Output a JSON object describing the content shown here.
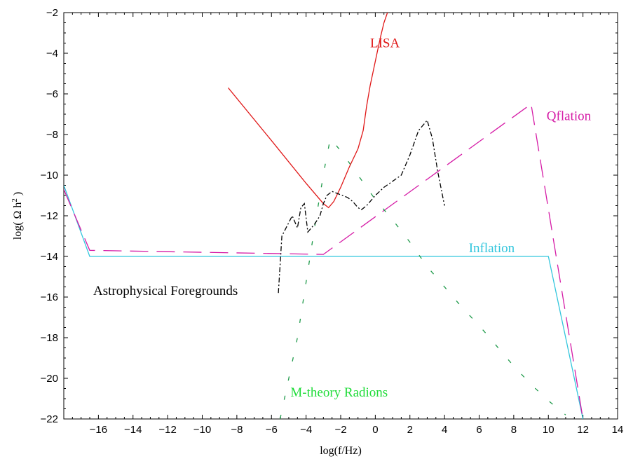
{
  "chart_data": {
    "type": "line",
    "xlabel": "log(f/Hz)",
    "ylabel": "log( Ω h",
    "ylabel_sup": "2",
    "ylabel_close": ")",
    "xlim": [
      -18,
      14
    ],
    "ylim": [
      -22,
      -2
    ],
    "xticks": [
      -16,
      -14,
      -12,
      -10,
      -8,
      -6,
      -4,
      -2,
      0,
      2,
      4,
      6,
      8,
      10,
      12,
      14
    ],
    "xtick_labels": [
      "−16",
      "−14",
      "−12",
      "−10",
      "−8",
      "−6",
      "−4",
      "−2",
      "0",
      "2",
      "4",
      "6",
      "8",
      "10",
      "12",
      "14"
    ],
    "yticks": [
      -22,
      -20,
      -18,
      -16,
      -14,
      -12,
      -10,
      -8,
      -6,
      -4,
      -2
    ],
    "ytick_labels": [
      "−22",
      "−20",
      "−18",
      "−16",
      "−14",
      "−12",
      "−10",
      "−8",
      "−6",
      "−4",
      "−2"
    ],
    "grid": false,
    "series": [
      {
        "name": "Inflation",
        "color": "#33c6dd",
        "dash": "solid",
        "x": [
          -18,
          -16.5,
          10,
          12
        ],
        "y": [
          -10.5,
          -14,
          -14,
          -22
        ]
      },
      {
        "name": "Qflation",
        "color": "#d51ba6",
        "dash": "long-dash",
        "x": [
          -18,
          -16.5,
          -3,
          9,
          12
        ],
        "y": [
          -10.7,
          -13.7,
          -13.9,
          -6.5,
          -22
        ]
      },
      {
        "name": "M-theory Radions",
        "color": "#1f9a4a",
        "dash": "dotted-dash",
        "x": [
          -5.5,
          -4.5,
          -3.4,
          -2.9,
          -2.6,
          -2,
          -1,
          0,
          1,
          2,
          3,
          4,
          5,
          6,
          7,
          8,
          9,
          10,
          11
        ],
        "y": [
          -22,
          -18,
          -12,
          -9.5,
          -8.2,
          -8.8,
          -10,
          -11.2,
          -12.2,
          -13.3,
          -14.5,
          -15.5,
          -16.5,
          -17.4,
          -18.4,
          -19.4,
          -20.3,
          -21.1,
          -21.8
        ]
      },
      {
        "name": "LISA",
        "color": "#e01818",
        "dash": "solid",
        "x": [
          -8.5,
          -6,
          -4,
          -3,
          -2.7,
          -2.4,
          -2,
          -1.5,
          -1,
          -0.7,
          -0.5,
          -0.3,
          -0.1,
          0.1,
          0.3,
          0.5,
          0.7
        ],
        "y": [
          -5.7,
          -8.3,
          -10.4,
          -11.4,
          -11.6,
          -11.3,
          -10.6,
          -9.6,
          -8.7,
          -7.8,
          -6.6,
          -5.6,
          -4.8,
          -4.0,
          -3.2,
          -2.5,
          -2
        ]
      },
      {
        "name": "Astrophysical Foregrounds",
        "color": "#000000",
        "dash": "dash-dot",
        "x": [
          -5.6,
          -5.4,
          -5.1,
          -4.8,
          -4.5,
          -4.3,
          -4.1,
          -3.9,
          -3.8,
          -3.5,
          -3.2,
          -3.0,
          -2.8,
          -2.5,
          -2.2,
          -1.9,
          -1.6,
          -1.3,
          -1.0,
          -0.8,
          -0.5,
          0,
          0.5,
          1,
          1.5,
          2,
          2.5,
          3,
          3.3,
          3.6,
          4
        ],
        "y": [
          -15.8,
          -13.0,
          -12.5,
          -12.0,
          -12.6,
          -11.6,
          -11.4,
          -12.8,
          -12.7,
          -12.4,
          -12.0,
          -11.4,
          -11.0,
          -10.8,
          -10.9,
          -11.0,
          -11.1,
          -11.3,
          -11.6,
          -11.7,
          -11.5,
          -11.0,
          -10.6,
          -10.3,
          -10.0,
          -9.0,
          -7.8,
          -7.3,
          -8.2,
          -9.8,
          -11.5
        ]
      }
    ],
    "annotations": [
      {
        "text": "LISA",
        "color": "#e01818",
        "x": -0.3,
        "y": -3.7
      },
      {
        "text": "Qflation",
        "color": "#d51ba6",
        "x": 9.9,
        "y": -7.3
      },
      {
        "text": "Inflation",
        "color": "#33c6dd",
        "x": 5.4,
        "y": -13.8
      },
      {
        "text": "Astrophysical Foregrounds",
        "color": "#000000",
        "x": -16.3,
        "y": -15.9
      },
      {
        "text": "M-theory Radions",
        "color": "#1fdc39",
        "x": -4.9,
        "y": -20.9
      }
    ]
  }
}
